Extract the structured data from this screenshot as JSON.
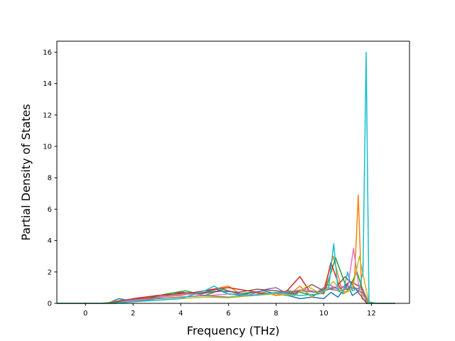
{
  "chart_data": {
    "type": "line",
    "title": "",
    "xlabel": "Frequency (THz)",
    "ylabel": "Partial Density of States",
    "xlim": [
      -1.2,
      13.6
    ],
    "ylim": [
      0,
      16.7
    ],
    "xticks": [
      0,
      2,
      4,
      6,
      8,
      10,
      12
    ],
    "yticks": [
      0,
      2,
      4,
      6,
      8,
      10,
      12,
      14,
      16
    ],
    "grid": false,
    "legend": "none",
    "colors": [
      "#1f77b4",
      "#ff7f0e",
      "#2ca02c",
      "#d62728",
      "#9467bd",
      "#8c564b",
      "#e377c2",
      "#7f7f7f",
      "#bcbd22",
      "#17becf"
    ],
    "series": [
      {
        "color": "#1f77b4",
        "x": [
          -1.2,
          0.6,
          1.0,
          1.4,
          2.0,
          3.0,
          3.6,
          4.5,
          5.0,
          5.5,
          6.0,
          6.5,
          7.0,
          7.5,
          8.0,
          8.5,
          9.0,
          9.5,
          10.0,
          10.3,
          10.6,
          11.0,
          11.2,
          11.5,
          11.7,
          11.9,
          13.0
        ],
        "y": [
          0,
          0,
          0.05,
          0.3,
          0.15,
          0.4,
          0.5,
          0.6,
          0.7,
          0.9,
          0.6,
          0.5,
          0.7,
          0.8,
          0.6,
          0.5,
          0.3,
          0.4,
          0.3,
          0.7,
          0.4,
          1.2,
          0.5,
          0.8,
          0.6,
          0,
          0
        ]
      },
      {
        "color": "#ff7f0e",
        "x": [
          -1.2,
          0.8,
          1.5,
          2.2,
          3.0,
          4.0,
          5.0,
          6.0,
          6.5,
          7.0,
          7.5,
          8.0,
          8.6,
          9.0,
          9.5,
          10.0,
          10.4,
          10.8,
          11.2,
          11.3,
          11.45,
          11.6,
          11.9,
          13.0
        ],
        "y": [
          0,
          0,
          0.2,
          0.3,
          0.4,
          0.5,
          0.8,
          1.1,
          0.6,
          0.5,
          0.7,
          0.5,
          0.6,
          1.1,
          0.4,
          0.9,
          3.0,
          0.6,
          0.9,
          1.8,
          6.9,
          0.3,
          0,
          0
        ]
      },
      {
        "color": "#2ca02c",
        "x": [
          -1.2,
          0.9,
          1.6,
          2.5,
          3.4,
          4.2,
          5.0,
          5.8,
          6.4,
          7.0,
          7.8,
          8.5,
          9.0,
          9.6,
          10.1,
          10.5,
          11.0,
          11.4,
          11.8,
          13.0
        ],
        "y": [
          0,
          0,
          0.2,
          0.3,
          0.6,
          0.8,
          0.5,
          0.9,
          0.6,
          0.7,
          0.6,
          0.8,
          0.7,
          0.5,
          1.0,
          2.9,
          0.8,
          2.0,
          0,
          0
        ]
      },
      {
        "color": "#d62728",
        "x": [
          -1.2,
          1.0,
          2.0,
          3.0,
          3.8,
          4.6,
          5.4,
          6.0,
          6.8,
          7.6,
          8.4,
          9.0,
          9.4,
          10.0,
          10.3,
          10.7,
          11.1,
          11.6,
          11.9,
          13.0
        ],
        "y": [
          0,
          0,
          0.3,
          0.5,
          0.6,
          0.7,
          0.9,
          1.0,
          0.8,
          0.6,
          0.7,
          1.7,
          0.8,
          0.6,
          2.6,
          0.9,
          1.4,
          1.0,
          0,
          0
        ]
      },
      {
        "color": "#9467bd",
        "x": [
          -1.2,
          1.1,
          1.8,
          2.6,
          3.5,
          4.4,
          5.2,
          6.0,
          6.8,
          7.6,
          8.0,
          8.5,
          9.1,
          9.7,
          10.2,
          10.6,
          11.0,
          11.5,
          11.9,
          13.0
        ],
        "y": [
          0,
          0,
          0.25,
          0.3,
          0.5,
          0.6,
          0.7,
          0.8,
          0.5,
          0.9,
          1.0,
          0.6,
          0.8,
          0.7,
          1.2,
          0.9,
          1.1,
          0.8,
          0,
          0
        ]
      },
      {
        "color": "#8c564b",
        "x": [
          -1.2,
          1.0,
          1.7,
          2.4,
          3.2,
          4.0,
          4.8,
          5.6,
          6.4,
          7.2,
          8.0,
          8.8,
          9.5,
          10.0,
          10.5,
          10.9,
          11.3,
          11.8,
          13.0
        ],
        "y": [
          0,
          0,
          0.2,
          0.3,
          0.4,
          0.7,
          0.6,
          0.8,
          0.7,
          0.9,
          0.8,
          0.6,
          1.2,
          0.8,
          1.0,
          1.7,
          1.0,
          0,
          0
        ]
      },
      {
        "color": "#e377c2",
        "x": [
          -1.2,
          1.2,
          2.0,
          2.8,
          3.6,
          4.4,
          5.2,
          6.0,
          6.8,
          7.6,
          8.4,
          9.2,
          9.8,
          10.3,
          10.7,
          11.0,
          11.25,
          11.5,
          11.9,
          13.0
        ],
        "y": [
          0,
          0,
          0.2,
          0.3,
          0.5,
          0.6,
          0.5,
          0.6,
          0.5,
          0.6,
          0.7,
          0.9,
          0.7,
          1.0,
          1.1,
          0.9,
          3.5,
          0.8,
          0,
          0
        ]
      },
      {
        "color": "#7f7f7f",
        "x": [
          -1.2,
          1.3,
          2.2,
          3.0,
          4.0,
          5.0,
          6.0,
          7.0,
          8.0,
          9.0,
          9.7,
          10.2,
          10.7,
          11.2,
          11.6,
          11.9,
          13.0
        ],
        "y": [
          0,
          0,
          0.15,
          0.3,
          0.4,
          0.5,
          0.4,
          0.5,
          0.6,
          0.8,
          0.7,
          0.9,
          0.8,
          1.0,
          0.9,
          0,
          0
        ]
      },
      {
        "color": "#bcbd22",
        "x": [
          -1.2,
          1.2,
          2.0,
          3.0,
          4.0,
          5.0,
          6.0,
          7.0,
          8.0,
          8.8,
          9.3,
          9.9,
          10.4,
          10.8,
          11.2,
          11.5,
          11.9,
          13.0
        ],
        "y": [
          0,
          0,
          0.1,
          0.2,
          0.3,
          0.4,
          0.35,
          0.5,
          0.6,
          0.5,
          1.1,
          0.6,
          1.4,
          0.7,
          0.9,
          3.0,
          0,
          0
        ]
      },
      {
        "color": "#17becf",
        "x": [
          -1.2,
          1.0,
          2.0,
          3.0,
          4.0,
          5.0,
          5.4,
          6.0,
          7.0,
          8.0,
          9.0,
          9.8,
          10.2,
          10.42,
          10.6,
          10.8,
          11.0,
          11.2,
          11.5,
          11.65,
          11.78,
          11.9,
          12.2,
          13.0
        ],
        "y": [
          0,
          0,
          0.1,
          0.2,
          0.3,
          0.8,
          1.1,
          0.6,
          0.5,
          0.7,
          0.5,
          0.6,
          0.9,
          3.8,
          0.8,
          0.6,
          2.0,
          0.8,
          1.0,
          2.0,
          16.0,
          0.1,
          0,
          0
        ]
      }
    ]
  }
}
